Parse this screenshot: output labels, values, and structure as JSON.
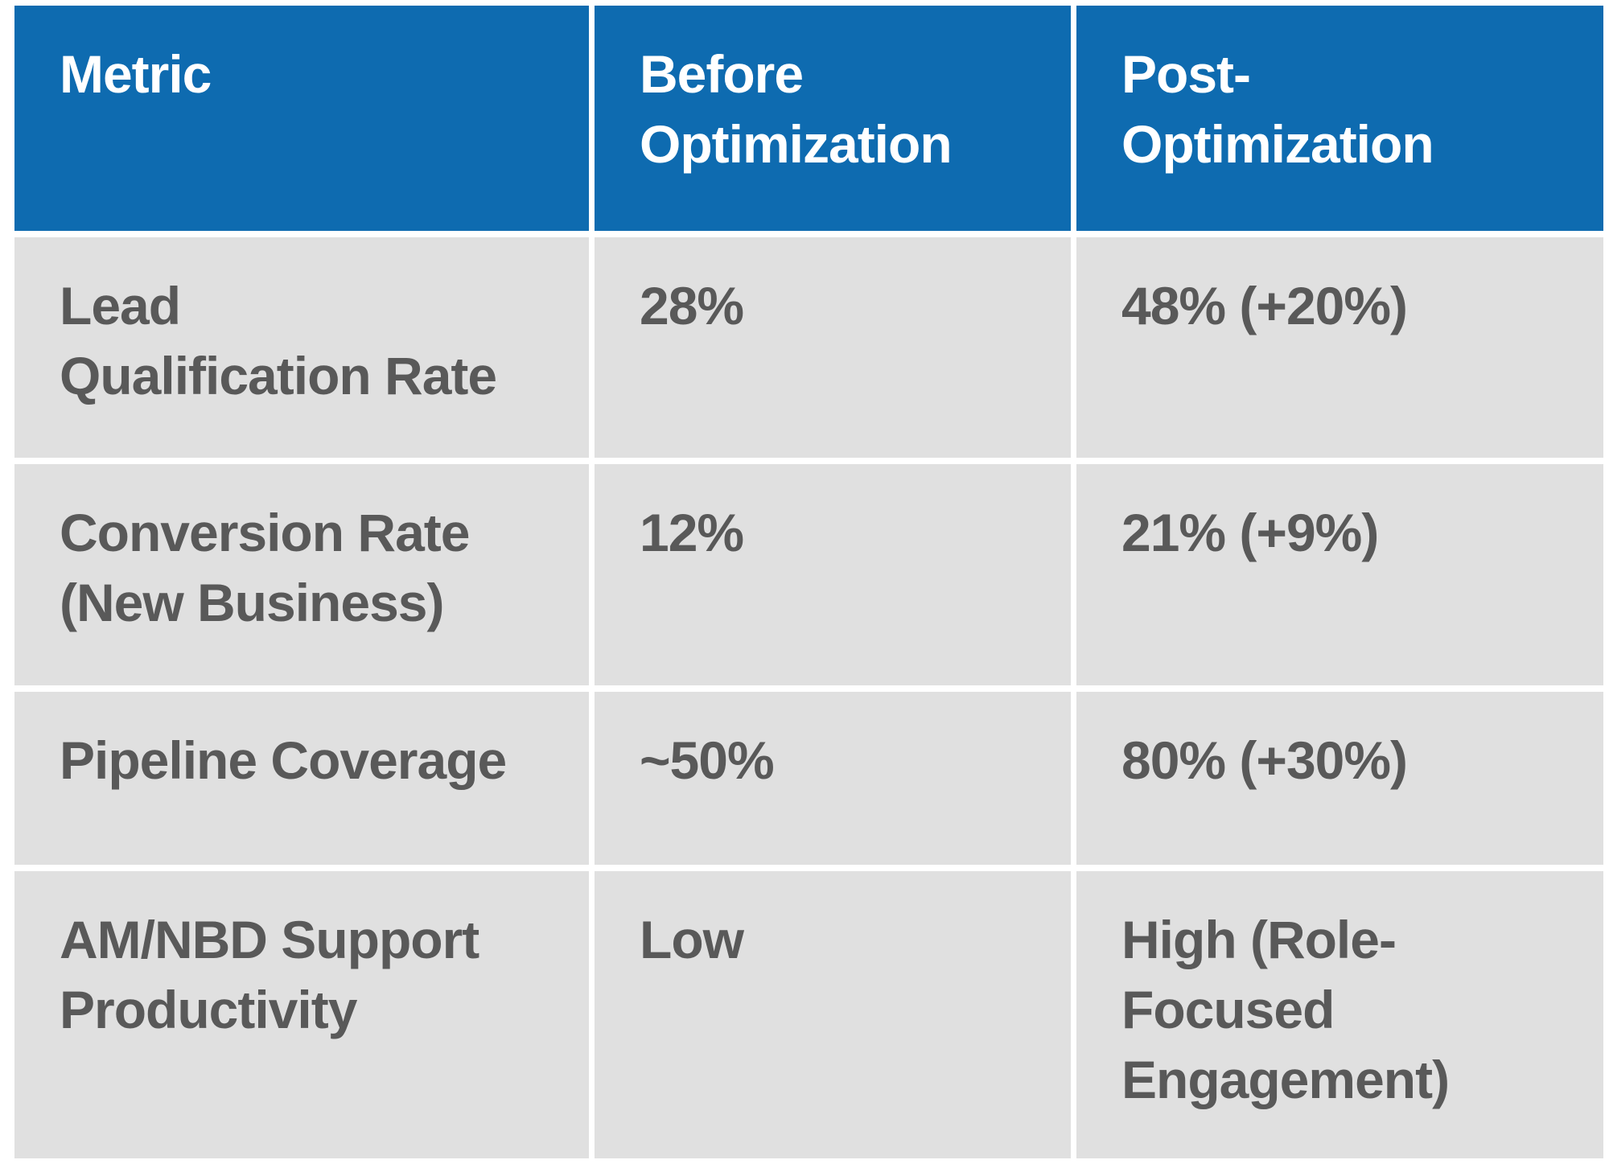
{
  "colors": {
    "header_bg": "#0e6bb0",
    "header_text": "#ffffff",
    "body_bg": "#e0e0e0",
    "body_text": "#595959",
    "grid_line": "#ffffff"
  },
  "table": {
    "header": {
      "metric": "Metric",
      "before": "Before\nOptimization",
      "post": "Post-\nOptimization"
    },
    "rows": [
      {
        "metric": "Lead\nQualification Rate",
        "before": "28%",
        "post": "48% (+20%)"
      },
      {
        "metric": "Conversion Rate\n(New Business)",
        "before": "12%",
        "post": "21% (+9%)"
      },
      {
        "metric": "Pipeline Coverage",
        "before": "~50%",
        "post": "80% (+30%)"
      },
      {
        "metric": "AM/NBD Support\nProductivity",
        "before": "Low",
        "post": "High (Role-\nFocused\nEngagement)"
      }
    ]
  }
}
